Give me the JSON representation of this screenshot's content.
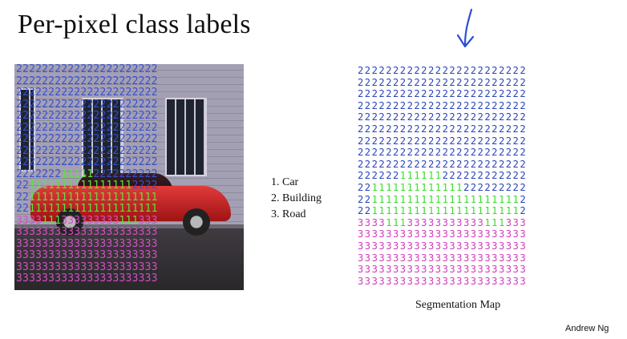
{
  "slide": {
    "title": "Per-pixel class labels",
    "legend": [
      "1. Car",
      "2. Building",
      "3. Road"
    ],
    "caption": "Segmentation Map",
    "author": "Andrew Ng"
  },
  "photo_labels": [
    "2222222222222222222222",
    "2222222222222222222222",
    "2222222222222222222222",
    "2222222222222222222222",
    "2222222222222222222222",
    "2222222222222222222222",
    "2222222222222222222222",
    "2222222222222222222222",
    "2222222222222222222222",
    "2222222111112222222222",
    "2211111111111111112222",
    "2211111111111111111111",
    "2211111111111111111111",
    "3333111333333333111333",
    "3333333333333333333333",
    "3333333333333333333333",
    "3333333333333333333333",
    "3333333333333333333333",
    "3333333333333333333333"
  ],
  "segmentation_map": [
    "222222222222222222222222",
    "222222222222222222222222",
    "222222222222222222222222",
    "222222222222222222222222",
    "222222222222222222222222",
    "222222222222222222222222",
    "222222222222222222222222",
    "222222222222222222222222",
    "222222222222222222222222",
    "222222111111222222222222",
    "221111111111111222222222",
    "221111111111111111111112",
    "221111111111111111111112",
    "333311133333333333111333",
    "333333333333333333333333",
    "333333333333333333333333",
    "333333333333333333333333",
    "333333333333333333333333",
    "333333333333333333333333"
  ],
  "colors": {
    "car": "#3bdc2e",
    "building": "#2c45b8",
    "road": "#d03dbb",
    "arrow": "#2b4fd0"
  },
  "icons": {
    "arrow": "down-arrow-icon"
  }
}
